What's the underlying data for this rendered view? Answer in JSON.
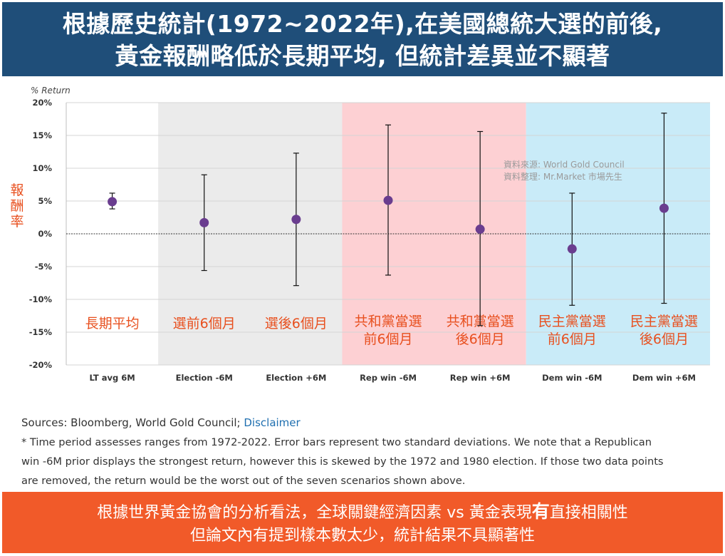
{
  "banner": {
    "line1": "根據歷史統計(1972~2022年),在美國總統大選的前後,",
    "line2": "黃金報酬略低於長期平均, 但統計差異並不顯著"
  },
  "chart_data": {
    "type": "scatter",
    "title": "",
    "y_unit_label": "% Return",
    "ylabel": "報酬率",
    "ylim": [
      -20,
      20
    ],
    "y_ticks": [
      20,
      15,
      10,
      5,
      0,
      -5,
      -10,
      -15,
      -20
    ],
    "y_tick_labels": [
      "20%",
      "15%",
      "10%",
      "5%",
      "0%",
      "-5%",
      "-10%",
      "-15%",
      "-20%"
    ],
    "grid": "horizontal",
    "colors": {
      "marker": "#6a3d8f",
      "band_grey": "#ebebeb",
      "band_red": "#fdd0d3",
      "band_blue": "#c9ebf8",
      "annotation": "#e8501f"
    },
    "bands": [
      {
        "from": 1,
        "to": 2,
        "color": "#ebebeb"
      },
      {
        "from": 3,
        "to": 4,
        "color": "#fdd0d3"
      },
      {
        "from": 5,
        "to": 6,
        "color": "#c9ebf8"
      }
    ],
    "categories": [
      "LT avg 6M",
      "Election -6M",
      "Election +6M",
      "Rep win -6M",
      "Rep win +6M",
      "Dem win -6M",
      "Dem win +6M"
    ],
    "points": [
      {
        "category": "LT avg 6M",
        "value": 4.9,
        "low": 3.8,
        "high": 6.2
      },
      {
        "category": "Election -6M",
        "value": 1.7,
        "low": -5.6,
        "high": 9.0
      },
      {
        "category": "Election +6M",
        "value": 2.2,
        "low": -7.9,
        "high": 12.3
      },
      {
        "category": "Rep win -6M",
        "value": 5.1,
        "low": -6.3,
        "high": 16.6
      },
      {
        "category": "Rep win +6M",
        "value": 0.7,
        "low": -14.0,
        "high": 15.6
      },
      {
        "category": "Dem win -6M",
        "value": -2.3,
        "low": -10.9,
        "high": 6.2
      },
      {
        "category": "Dem win +6M",
        "value": 3.9,
        "low": -10.6,
        "high": 18.4
      }
    ],
    "category_annotations": [
      [
        "長期平均"
      ],
      [
        "選前6個月"
      ],
      [
        "選後6個月"
      ],
      [
        "共和黨當選",
        "前6個月"
      ],
      [
        "共和黨當選",
        "後6個月"
      ],
      [
        "民主黨當選",
        "前6個月"
      ],
      [
        "民主黨當選",
        "後6個月"
      ]
    ],
    "source_note": [
      "資料來源: World Gold Council",
      "資料整理: Mr.Market 市場先生"
    ]
  },
  "sources": {
    "prefix": "Sources: Bloomberg, World Gold Council; ",
    "link": "Disclaimer"
  },
  "note_lines": [
    "* Time period assesses ranges from 1972-2022. Error bars represent two standard deviations. We note that a Republican",
    "win -6M prior displays the strongest return, however this is skewed by the 1972 and 1980 election. If those two data points",
    "are removed, the return would be the worst out of the seven scenarios shown above."
  ],
  "footer": {
    "line1_a": "根據世界黃金協會的分析看法，全球關鍵經濟因素 vs 黃金表現",
    "line1_bold": "有",
    "line1_b": "直接相關性",
    "line2": "但論文內有提到樣本數太少，統計結果不具顯著性"
  }
}
